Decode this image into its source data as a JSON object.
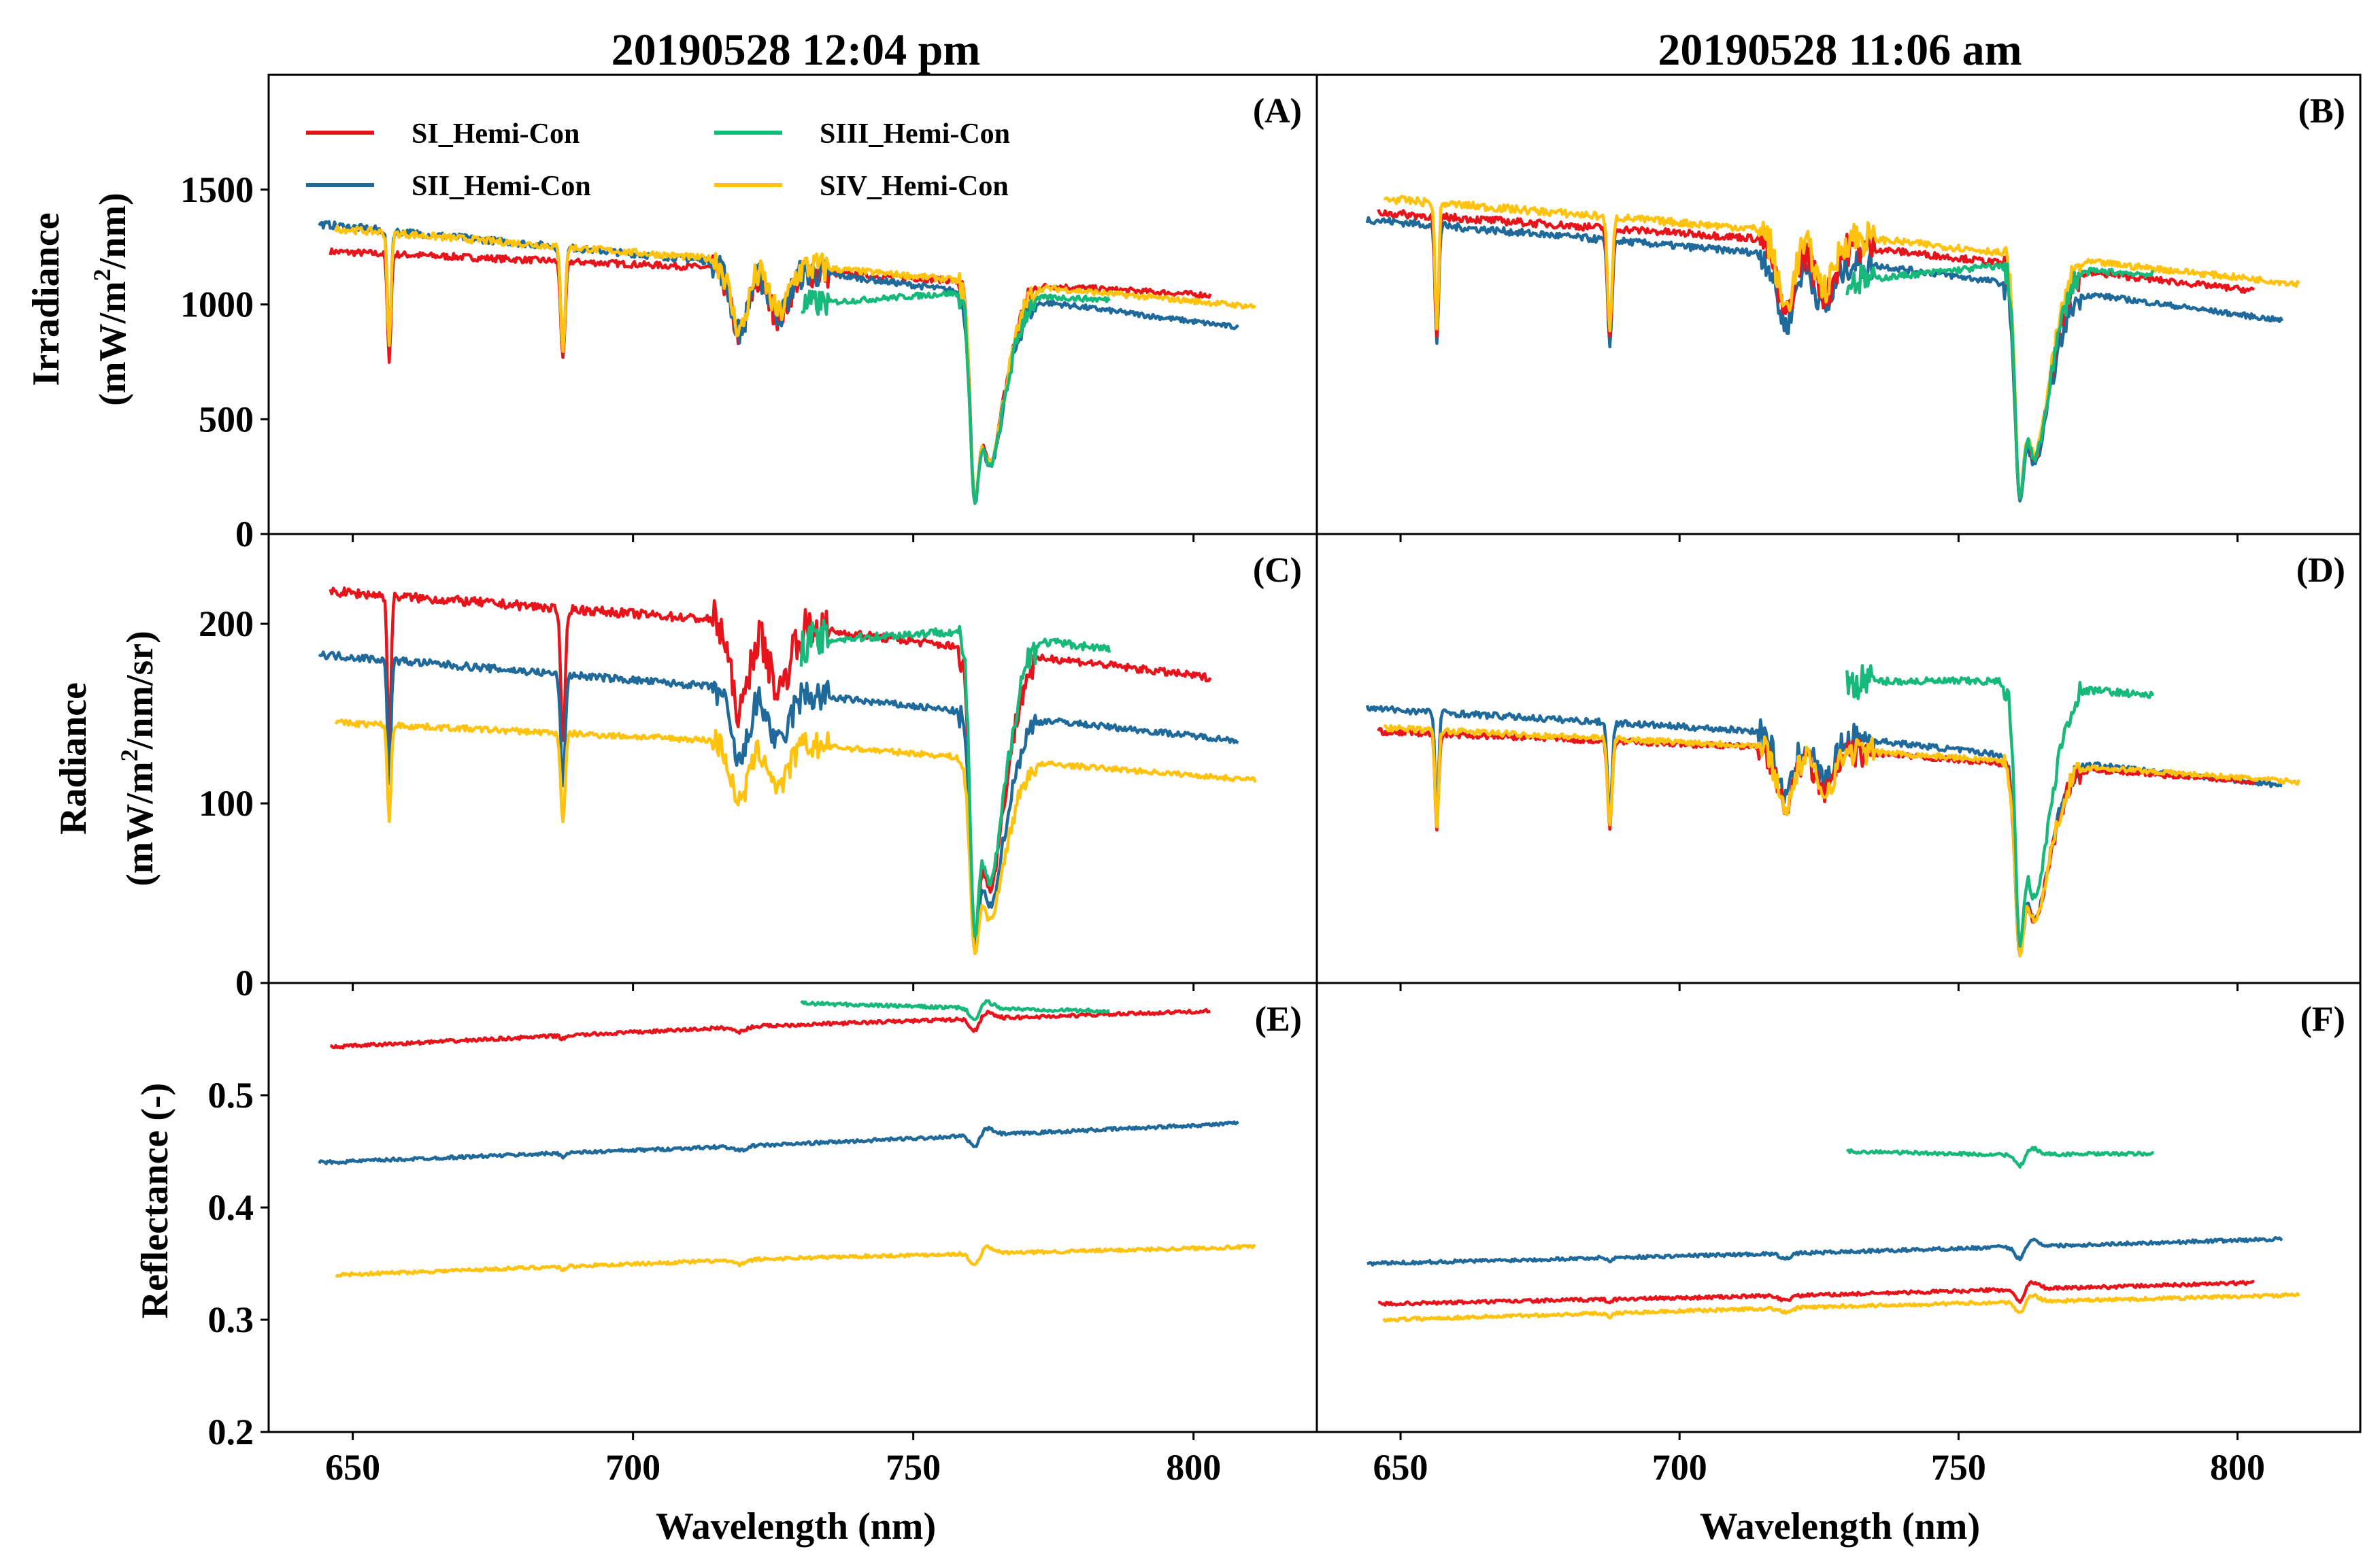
{
  "column_titles": [
    "20190528 12:04 pm",
    "20190528 11:06 am"
  ],
  "colors": {
    "SI": "#e8141c",
    "SII": "#1f6a9a",
    "SIII": "#17b97a",
    "SIV": "#ffc20e"
  },
  "legend": [
    {
      "key": "SI",
      "label": "SI_Hemi-Con"
    },
    {
      "key": "SII",
      "label": "SII_Hemi-Con"
    },
    {
      "key": "SIII",
      "label": "SIII_Hemi-Con"
    },
    {
      "key": "SIV",
      "label": "SIV_Hemi-Con"
    }
  ],
  "y_labels": {
    "irradiance": [
      "Irradiance",
      "(mW/m",
      "2",
      "/nm)"
    ],
    "radiance": [
      "Radiance",
      "(mW/m",
      "2",
      "/nm/sr)"
    ],
    "reflectance": "Reflectance (-)"
  },
  "x_label": "Wavelength (nm)",
  "chart_data": [
    {
      "panel": "(A)",
      "type": "line",
      "row": 0,
      "col": 0,
      "ylim": [
        0,
        2000
      ],
      "yticks": [
        "0",
        "500",
        "1000",
        "1500"
      ],
      "ytick_values": [
        0,
        500,
        1000,
        1500
      ],
      "xlim": [
        635,
        822
      ],
      "xticks": [
        650,
        700,
        750,
        800
      ],
      "series": [
        {
          "key": "SI",
          "range": [
            646,
            803
          ],
          "level": [
            1230,
            1150,
            1040
          ],
          "offset": 0
        },
        {
          "key": "SII",
          "range": [
            644,
            808
          ],
          "level": [
            1350,
            1160,
            900
          ],
          "offset": 0
        },
        {
          "key": "SIV",
          "range": [
            647,
            811
          ],
          "level": [
            1330,
            1170,
            990
          ],
          "offset": 0
        },
        {
          "key": "SIII",
          "range": [
            730,
            785
          ],
          "level": [
            1000,
            1050,
            1020
          ],
          "offset": 0
        }
      ]
    },
    {
      "panel": "(B)",
      "type": "line",
      "row": 0,
      "col": 1,
      "ylim": [
        0,
        2000
      ],
      "yticks": [],
      "ytick_values": [],
      "xlim": [
        635,
        822
      ],
      "xticks": [
        650,
        700,
        750,
        800
      ],
      "series": [
        {
          "key": "SII",
          "range": [
            644,
            808
          ],
          "level": [
            1370,
            1200,
            930
          ],
          "offset": 0
        },
        {
          "key": "SI",
          "range": [
            646,
            803
          ],
          "level": [
            1400,
            1270,
            1060
          ],
          "offset": 0
        },
        {
          "key": "SIV",
          "range": [
            647,
            811
          ],
          "level": [
            1460,
            1300,
            1090
          ],
          "offset": 0
        },
        {
          "key": "SIII",
          "range": [
            730,
            785
          ],
          "level": [
            1100,
            1170,
            1130
          ],
          "offset": 0
        }
      ]
    },
    {
      "panel": "(C)",
      "type": "line",
      "row": 1,
      "col": 0,
      "ylim": [
        0,
        250
      ],
      "yticks": [
        "0",
        "100",
        "200"
      ],
      "ytick_values": [
        0,
        100,
        200
      ],
      "xlim": [
        635,
        822
      ],
      "xticks": [
        650,
        700,
        750,
        800
      ],
      "series": [
        {
          "key": "SI",
          "range": [
            646,
            803
          ],
          "level": [
            218,
            200,
            170
          ],
          "offset": 0
        },
        {
          "key": "SII",
          "range": [
            644,
            808
          ],
          "level": [
            183,
            162,
            135
          ],
          "offset": 0
        },
        {
          "key": "SIV",
          "range": [
            647,
            811
          ],
          "level": [
            145,
            133,
            113
          ],
          "offset": 0
        },
        {
          "key": "SIII",
          "range": [
            730,
            785
          ],
          "level": [
            190,
            196,
            186
          ],
          "offset": 0
        }
      ]
    },
    {
      "panel": "(D)",
      "type": "line",
      "row": 1,
      "col": 1,
      "ylim": [
        0,
        250
      ],
      "yticks": [],
      "ytick_values": [],
      "xlim": [
        635,
        822
      ],
      "xticks": [
        650,
        700,
        750,
        800
      ],
      "series": [
        {
          "key": "SII",
          "range": [
            644,
            808
          ],
          "level": [
            153,
            138,
            110
          ],
          "offset": 0
        },
        {
          "key": "SI",
          "range": [
            646,
            803
          ],
          "level": [
            140,
            130,
            112
          ],
          "offset": 0
        },
        {
          "key": "SIV",
          "range": [
            647,
            811
          ],
          "level": [
            142,
            130,
            112
          ],
          "offset": 0
        },
        {
          "key": "SIII",
          "range": [
            730,
            785
          ],
          "level": [
            168,
            168,
            160
          ],
          "offset": 0
        }
      ]
    },
    {
      "panel": "(E)",
      "type": "line",
      "row": 2,
      "col": 0,
      "ylim": [
        0.2,
        0.6
      ],
      "yticks": [
        "0.2",
        "0.3",
        "0.4",
        "0.5"
      ],
      "ytick_values": [
        0.2,
        0.3,
        0.4,
        0.5
      ],
      "xlim": [
        635,
        822
      ],
      "xticks": [
        650,
        700,
        750,
        800
      ],
      "series": [
        {
          "key": "SI",
          "range": [
            646,
            803
          ],
          "level": [
            0.543,
            0.562,
            0.575
          ],
          "offset": 0
        },
        {
          "key": "SII",
          "range": [
            644,
            808
          ],
          "level": [
            0.44,
            0.456,
            0.475
          ],
          "offset": 0
        },
        {
          "key": "SIV",
          "range": [
            647,
            811
          ],
          "level": [
            0.34,
            0.355,
            0.365
          ],
          "offset": 0
        },
        {
          "key": "SIII",
          "range": [
            730,
            785
          ],
          "level": [
            0.582,
            0.578,
            0.575
          ],
          "offset": 0
        }
      ]
    },
    {
      "panel": "(F)",
      "type": "line",
      "row": 2,
      "col": 1,
      "ylim": [
        0.2,
        0.6
      ],
      "yticks": [],
      "ytick_values": [],
      "xlim": [
        635,
        822
      ],
      "xticks": [
        650,
        700,
        750,
        800
      ],
      "series": [
        {
          "key": "SII",
          "range": [
            644,
            808
          ],
          "level": [
            0.35,
            0.36,
            0.372
          ],
          "offset": 0
        },
        {
          "key": "SI",
          "range": [
            646,
            803
          ],
          "level": [
            0.314,
            0.322,
            0.333
          ],
          "offset": 0
        },
        {
          "key": "SIV",
          "range": [
            647,
            811
          ],
          "level": [
            0.3,
            0.312,
            0.322
          ],
          "offset": 0
        },
        {
          "key": "SIII",
          "range": [
            730,
            785
          ],
          "level": [
            0.45,
            0.447,
            0.448
          ],
          "offset": 0
        }
      ]
    }
  ]
}
